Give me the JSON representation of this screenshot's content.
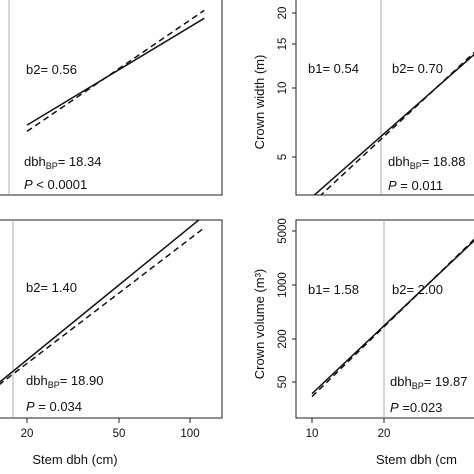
{
  "chart_data": [
    {
      "type": "line",
      "panel": "top-left",
      "x_scale": "log",
      "series": [
        {
          "style": "solid",
          "x": [
            20,
            115
          ],
          "y": [
            6.8,
            19
          ]
        },
        {
          "style": "dashed",
          "x": [
            20,
            115
          ],
          "y": [
            6.4,
            20.5
          ]
        }
      ],
      "annotations": {
        "b2": "b2= 0.56",
        "dbh": "dbh",
        "dbh_sub": "BP",
        "dbh_val": "= 18.34",
        "p_italic": "P",
        "p_val": " < 0.0001"
      },
      "breakpoint": 18.34
    },
    {
      "type": "line",
      "panel": "top-right",
      "x_scale": "log",
      "ylabel": "Crown width (m)",
      "ytick_labels": [
        "5",
        "10",
        "15",
        "20"
      ],
      "series": [
        {
          "style": "solid",
          "x": [
            10,
            50
          ],
          "y": [
            3.4,
            14
          ]
        },
        {
          "style": "dashed",
          "x": [
            10,
            50
          ],
          "y": [
            3.2,
            14.3
          ]
        }
      ],
      "annotations": {
        "b1": "b1= 0.54",
        "b2": "b2= 0.70",
        "dbh": "dbh",
        "dbh_sub": "BP",
        "dbh_val": "= 18.88",
        "p_italic": "P",
        "p_val": " = 0.011"
      },
      "breakpoint": 18.88
    },
    {
      "type": "line",
      "panel": "bottom-left",
      "x_scale": "log",
      "xlabel": "Stem dbh (cm)",
      "xtick_labels": [
        "20",
        "50",
        "100"
      ],
      "series": [
        {
          "style": "solid",
          "x": [
            14,
            115
          ],
          "y": [
            40,
            8000
          ]
        },
        {
          "style": "dashed",
          "x": [
            14,
            115
          ],
          "y": [
            38,
            5500
          ]
        }
      ],
      "annotations": {
        "b2": "b2= 1.40",
        "dbh": "dbh",
        "dbh_sub": "BP",
        "dbh_val": "= 18.90",
        "p_italic": "P",
        "p_val": " = 0.034"
      },
      "breakpoint": 18.9
    },
    {
      "type": "line",
      "panel": "bottom-right",
      "x_scale": "log",
      "xlabel": "Stem dbh (cm",
      "ylabel": "Crown volume (m³)",
      "xtick_labels": [
        "10",
        "20"
      ],
      "ytick_labels": [
        "50",
        "200",
        "1000",
        "5000"
      ],
      "series": [
        {
          "style": "solid",
          "x": [
            10,
            50
          ],
          "y": [
            35,
            4300
          ]
        },
        {
          "style": "dashed",
          "x": [
            10,
            50
          ],
          "y": [
            32,
            4500
          ]
        }
      ],
      "annotations": {
        "b1": "b1= 1.58",
        "b2": "b2= 2.00",
        "dbh": "dbh",
        "dbh_sub": "BP",
        "dbh_val": "= 19.87",
        "p_italic": "P",
        "p_val": " =0.023"
      },
      "breakpoint": 19.87
    }
  ]
}
